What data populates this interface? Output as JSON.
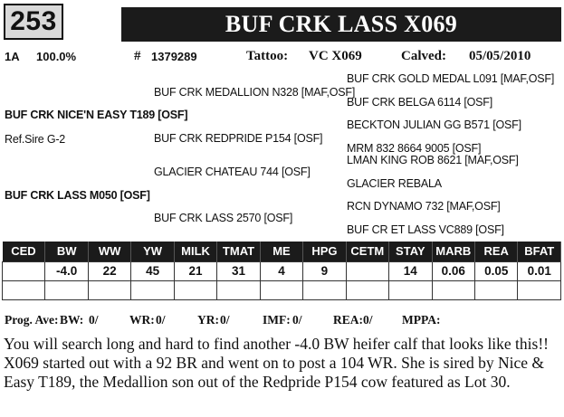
{
  "lot_number": "253",
  "animal_name": "BUF CRK LASS X069",
  "info": {
    "registration_type": "1A",
    "percent": "100.0%",
    "reg_number_label": "#",
    "reg_number": "1379289",
    "tattoo_label": "Tattoo:",
    "tattoo": "VC X069",
    "calved_label": "Calved:",
    "calved": "05/05/2010"
  },
  "pedigree": {
    "sire": "BUF CRK NICE'N EASY T189 [OSF]",
    "ref_sire": "Ref.Sire G-2",
    "dam": "BUF CRK LASS M050 [OSF]",
    "sire_sire": "BUF CRK MEDALLION N328 [MAF,OSF]",
    "sire_dam": "BUF CRK REDPRIDE P154  [OSF]",
    "dam_sire": "GLACIER CHATEAU 744 [OSF]",
    "dam_dam": "BUF CRK LASS 2570 [OSF]",
    "ss_sire": "BUF CRK GOLD MEDAL L091 [MAF,OSF]",
    "ss_dam": "BUF CRK BELGA 6114 [OSF]",
    "sd_sire": "BECKTON JULIAN GG B571 [OSF]",
    "sd_dam": "MRM 832 8664 9005  [OSF]",
    "ds_sire": "LMAN KING ROB 8621  [MAF,OSF]",
    "ds_dam": "GLACIER REBALA",
    "dd_sire": "RCN DYNAMO 732 [MAF,OSF]",
    "dd_dam": "BUF CR ET LASS VC889 [OSF]"
  },
  "epd_table": {
    "headers": [
      "CED",
      "BW",
      "WW",
      "YW",
      "MILK",
      "TMAT",
      "ME",
      "HPG",
      "CETM",
      "STAY",
      "MARB",
      "REA",
      "BFAT"
    ],
    "row1": [
      "",
      "-4.0",
      "22",
      "45",
      "21",
      "31",
      "4",
      "9",
      "",
      "14",
      "0.06",
      "0.05",
      "0.01"
    ],
    "row2": [
      "",
      "",
      "",
      "",
      "",
      "",
      "",
      "",
      "",
      "",
      "",
      "",
      ""
    ]
  },
  "progeny": {
    "label": "Prog. Ave:",
    "bw_label": "BW:",
    "bw": "0/",
    "wr_label": "WR:",
    "wr": "0/",
    "yr_label": "YR:",
    "yr": "0/",
    "imf_label": "IMF:",
    "imf": "0/",
    "rea_label": "REA:",
    "rea": "0/",
    "mppa_label": "MPPA:"
  },
  "description": "You will search long and hard to find another -4.0 BW heifer calf that looks like this!!  X069 started out with a 92 BR and went on to post a 104 WR.  She is sired by Nice & Easy T189, the Medallion son out of the Redpride P154 cow featured as Lot 30."
}
